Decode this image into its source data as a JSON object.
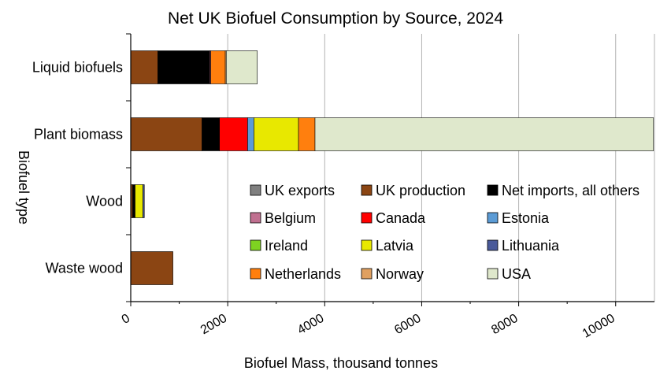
{
  "chart_data": {
    "type": "bar",
    "orientation": "horizontal",
    "stacked": true,
    "title": "Net UK Biofuel Consumption by Source, 2024",
    "xlabel": "Biofuel Mass, thousand tonnes",
    "ylabel": "Biofuel type",
    "xlim": [
      0,
      10800
    ],
    "x_ticks": [
      "0",
      "2000",
      "4000",
      "6000",
      "8000",
      "10000"
    ],
    "x_tick_values": [
      0,
      2000,
      4000,
      6000,
      8000,
      10000
    ],
    "grid": "vertical",
    "legend_position": "lower-right",
    "categories": [
      "Liquid biofuels",
      "Plant biomass",
      "Wood",
      "Waste wood"
    ],
    "series": [
      {
        "name": "UK exports",
        "color": "#808080",
        "values": [
          0,
          0,
          0,
          0
        ]
      },
      {
        "name": "UK production",
        "color": "#8b4513",
        "values": [
          560,
          1470,
          40,
          870
        ]
      },
      {
        "name": "Net imports, all others",
        "color": "#000000",
        "values": [
          1070,
          360,
          50,
          0
        ]
      },
      {
        "name": "Belgium",
        "color": "#c07090",
        "values": [
          20,
          0,
          0,
          0
        ]
      },
      {
        "name": "Canada",
        "color": "#ff0000",
        "values": [
          0,
          580,
          0,
          0
        ]
      },
      {
        "name": "Estonia",
        "color": "#5b9bd5",
        "values": [
          0,
          130,
          0,
          0
        ]
      },
      {
        "name": "Ireland",
        "color": "#7ed321",
        "values": [
          0,
          0,
          0,
          0
        ]
      },
      {
        "name": "Latvia",
        "color": "#e8e800",
        "values": [
          0,
          920,
          160,
          0
        ]
      },
      {
        "name": "Lithuania",
        "color": "#4a5a9a",
        "values": [
          0,
          0,
          30,
          0
        ]
      },
      {
        "name": "Netherlands",
        "color": "#ff7f0e",
        "values": [
          300,
          340,
          0,
          0
        ]
      },
      {
        "name": "Norway",
        "color": "#e0a060",
        "values": [
          20,
          0,
          0,
          0
        ]
      },
      {
        "name": "USA",
        "color": "#dfe8cc",
        "values": [
          640,
          6980,
          0,
          0
        ]
      }
    ]
  }
}
